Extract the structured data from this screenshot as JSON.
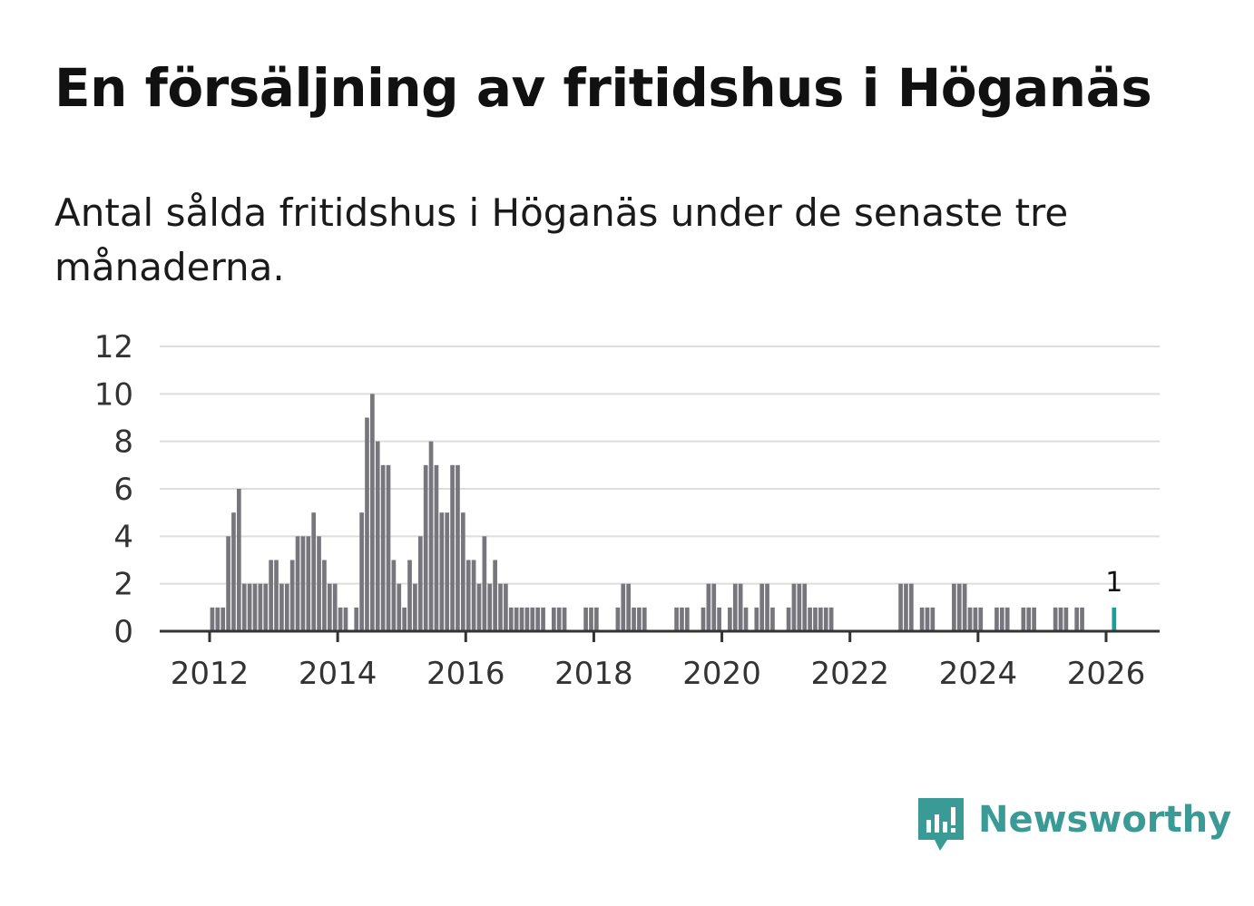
{
  "header": {
    "title": "En försäljning av fritidshus i Höganäs",
    "subtitle": "Antal sålda fritidshus i Höganäs under de senaste tre månaderna."
  },
  "brand": {
    "name": "Newsworthy",
    "icon": "newsworthy-logo-icon",
    "color": "#3a9b96"
  },
  "chart_data": {
    "type": "bar",
    "title": "En försäljning av fritidshus i Höganäs",
    "subtitle": "Antal sålda fritidshus i Höganäs under de senaste tre månaderna.",
    "xlabel": "",
    "ylabel": "",
    "ylim": [
      0,
      12
    ],
    "yticks": [
      "0",
      "2",
      "4",
      "6",
      "8",
      "10",
      "12"
    ],
    "xticks": [
      "2012",
      "2014",
      "2016",
      "2018",
      "2020",
      "2022",
      "2024",
      "2026"
    ],
    "grid": true,
    "bar_color": "#77767c",
    "highlight_color": "#1a9e98",
    "highlight_label": "1",
    "x": [
      "2012-01",
      "2012-02",
      "2012-03",
      "2012-04",
      "2012-05",
      "2012-06",
      "2012-07",
      "2012-08",
      "2012-09",
      "2012-10",
      "2012-11",
      "2012-12",
      "2013-01",
      "2013-02",
      "2013-03",
      "2013-04",
      "2013-05",
      "2013-06",
      "2013-07",
      "2013-08",
      "2013-09",
      "2013-10",
      "2013-11",
      "2013-12",
      "2014-01",
      "2014-02",
      "2014-03",
      "2014-04",
      "2014-05",
      "2014-06",
      "2014-07",
      "2014-08",
      "2014-09",
      "2014-10",
      "2014-11",
      "2014-12",
      "2015-01",
      "2015-02",
      "2015-03",
      "2015-04",
      "2015-05",
      "2015-06",
      "2015-07",
      "2015-08",
      "2015-09",
      "2015-10",
      "2015-11",
      "2015-12",
      "2016-01",
      "2016-02",
      "2016-03",
      "2016-04",
      "2016-05",
      "2016-06",
      "2016-07",
      "2016-08",
      "2016-09",
      "2016-10",
      "2016-11",
      "2016-12",
      "2017-01",
      "2017-02",
      "2017-03",
      "2017-04",
      "2017-05",
      "2017-06",
      "2017-07",
      "2017-08",
      "2017-09",
      "2017-10",
      "2017-11",
      "2017-12",
      "2018-01",
      "2018-02",
      "2018-03",
      "2018-04",
      "2018-05",
      "2018-06",
      "2018-07",
      "2018-08",
      "2018-09",
      "2018-10",
      "2018-11",
      "2018-12",
      "2019-01",
      "2019-02",
      "2019-03",
      "2019-04",
      "2019-05",
      "2019-06",
      "2019-07",
      "2019-08",
      "2019-09",
      "2019-10",
      "2019-11",
      "2019-12",
      "2020-01",
      "2020-02",
      "2020-03",
      "2020-04",
      "2020-05",
      "2020-06",
      "2020-07",
      "2020-08",
      "2020-09",
      "2020-10",
      "2020-11",
      "2020-12",
      "2021-01",
      "2021-02",
      "2021-03",
      "2021-04",
      "2021-05",
      "2021-06",
      "2021-07",
      "2021-08",
      "2021-09",
      "2021-10",
      "2021-11",
      "2021-12",
      "2022-01",
      "2022-02",
      "2022-03",
      "2022-04",
      "2022-05",
      "2022-06",
      "2022-07",
      "2022-08",
      "2022-09",
      "2022-10",
      "2022-11",
      "2022-12",
      "2023-01",
      "2023-02",
      "2023-03",
      "2023-04",
      "2023-05",
      "2023-06",
      "2023-07",
      "2023-08",
      "2023-09",
      "2023-10",
      "2023-11",
      "2023-12",
      "2024-01",
      "2024-02",
      "2024-03",
      "2024-04",
      "2024-05",
      "2024-06",
      "2024-07",
      "2024-08",
      "2024-09",
      "2024-10",
      "2024-11",
      "2024-12",
      "2025-01",
      "2025-02",
      "2025-03",
      "2025-04",
      "2025-05",
      "2025-06",
      "2025-07",
      "2025-08",
      "2025-09",
      "2025-10",
      "2025-11",
      "2025-12",
      "2026-01",
      "2026-02"
    ],
    "values": [
      1,
      1,
      1,
      4,
      5,
      6,
      2,
      2,
      2,
      2,
      2,
      3,
      3,
      2,
      2,
      3,
      4,
      4,
      4,
      5,
      4,
      3,
      2,
      2,
      1,
      1,
      0,
      1,
      5,
      9,
      10,
      8,
      7,
      7,
      3,
      2,
      1,
      3,
      2,
      4,
      7,
      8,
      7,
      5,
      5,
      7,
      7,
      5,
      3,
      3,
      2,
      4,
      2,
      3,
      2,
      2,
      1,
      1,
      1,
      1,
      1,
      1,
      1,
      0,
      1,
      1,
      1,
      0,
      0,
      0,
      1,
      1,
      1,
      0,
      0,
      0,
      1,
      2,
      2,
      1,
      1,
      1,
      0,
      0,
      0,
      0,
      0,
      1,
      1,
      1,
      0,
      0,
      1,
      2,
      2,
      1,
      0,
      1,
      2,
      2,
      1,
      0,
      1,
      2,
      2,
      1,
      0,
      0,
      1,
      2,
      2,
      2,
      1,
      1,
      1,
      1,
      1,
      0,
      0,
      0,
      0,
      0,
      0,
      0,
      0,
      0,
      0,
      0,
      0,
      2,
      2,
      2,
      0,
      1,
      1,
      1,
      0,
      0,
      0,
      2,
      2,
      2,
      1,
      1,
      1,
      0,
      0,
      1,
      1,
      1,
      0,
      0,
      1,
      1,
      1,
      0,
      0,
      0,
      1,
      1,
      1,
      0,
      1,
      1,
      0,
      0,
      0,
      0,
      0,
      1
    ]
  }
}
